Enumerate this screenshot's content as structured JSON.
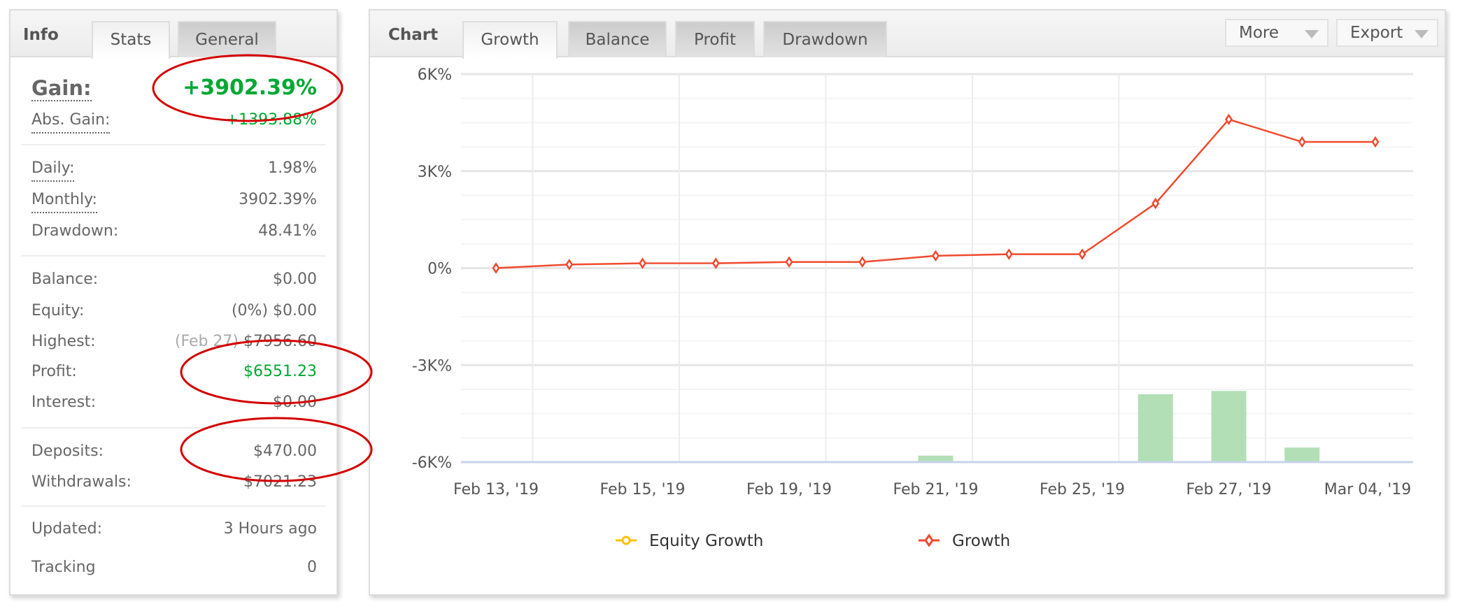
{
  "info": {
    "title": "Info",
    "tabs": [
      {
        "label": "Stats",
        "active": true
      },
      {
        "label": "General",
        "active": false
      }
    ],
    "gain": {
      "label": "Gain:",
      "value": "+3902.39%"
    },
    "abs_gain": {
      "label": "Abs. Gain:",
      "value": "+1393.88%"
    },
    "daily": {
      "label": "Daily:",
      "value": "1.98%"
    },
    "monthly": {
      "label": "Monthly:",
      "value": "3902.39%"
    },
    "drawdown": {
      "label": "Drawdown:",
      "value": "48.41%"
    },
    "balance": {
      "label": "Balance:",
      "value": "$0.00"
    },
    "equity": {
      "label": "Equity:",
      "value": "(0%) $0.00"
    },
    "highest": {
      "label": "Highest:",
      "date": "(Feb 27)",
      "value": "$7956.60"
    },
    "profit": {
      "label": "Profit:",
      "value": "$6551.23"
    },
    "interest": {
      "label": "Interest:",
      "value": "$0.00"
    },
    "deposits": {
      "label": "Deposits:",
      "value": "$470.00"
    },
    "withdrawals": {
      "label": "Withdrawals:",
      "value": "$7021.23"
    },
    "updated": {
      "label": "Updated:",
      "value": "3 Hours ago"
    },
    "tracking": {
      "label": "Tracking",
      "value": "0"
    }
  },
  "chart_panel": {
    "title": "Chart",
    "tabs": [
      {
        "label": "Growth",
        "active": true
      },
      {
        "label": "Balance"
      },
      {
        "label": "Profit"
      },
      {
        "label": "Drawdown"
      }
    ],
    "more_label": "More",
    "export_label": "Export"
  },
  "colors": {
    "positive": "#00a832",
    "annotation": "#d40000",
    "growth": "#f04a2e",
    "equity": "#ffc000",
    "bars": "#b3dfb6"
  },
  "chart_data": {
    "type": "line",
    "ylim": [
      -6000,
      6000
    ],
    "y_ticks": [
      "6K%",
      "3K%",
      "0%",
      "-3K%",
      "-6K%"
    ],
    "y_tick_values": [
      6000,
      3000,
      0,
      -3000,
      -6000
    ],
    "x_tick_labels": [
      "Feb 13, '19",
      "Feb 15, '19",
      "Feb 19, '19",
      "Feb 21, '19",
      "Feb 25, '19",
      "Feb 27, '19",
      "Mar 04, '19"
    ],
    "x_tick_indices": [
      0,
      2,
      4,
      6,
      8,
      10,
      12
    ],
    "grid": true,
    "legend_placement": "bottom",
    "series": [
      {
        "name": "Equity Growth",
        "values": []
      },
      {
        "name": "Growth",
        "values": [
          0,
          110,
          150,
          150,
          190,
          190,
          380,
          430,
          430,
          2000,
          4600,
          3902,
          3902
        ]
      }
    ],
    "bars": [
      0,
      20,
      0,
      0,
      0,
      20,
      200,
      0,
      0,
      2100,
      2200,
      450,
      0
    ]
  }
}
